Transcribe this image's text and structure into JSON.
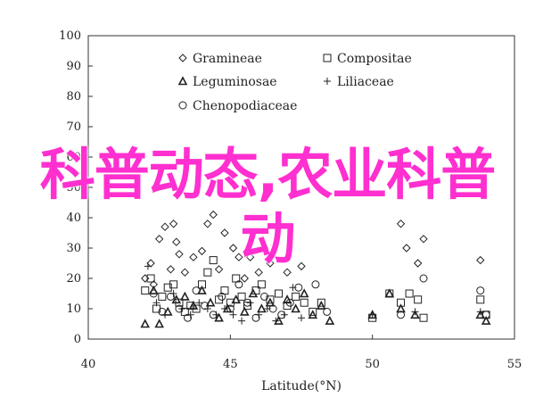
{
  "overlay_text": "科普动态,农业科普动",
  "chart_data": {
    "type": "scatter",
    "title": "",
    "xlabel": "Latitude(°N)",
    "ylabel": "",
    "xlim": [
      40,
      55
    ],
    "ylim": [
      0,
      100
    ],
    "xticks": [
      "40",
      "45",
      "50",
      "55"
    ],
    "yticks": [
      "0",
      "10",
      "20",
      "30",
      "40",
      "50",
      "60",
      "70",
      "80",
      "90",
      "100"
    ],
    "legend_placement": "top-left",
    "series": [
      {
        "name": "Gramineae",
        "marker": "diamond",
        "points": [
          [
            42.0,
            20
          ],
          [
            42.2,
            25
          ],
          [
            42.3,
            18
          ],
          [
            42.5,
            33
          ],
          [
            42.7,
            37
          ],
          [
            42.9,
            23
          ],
          [
            43.0,
            38
          ],
          [
            43.1,
            32
          ],
          [
            43.2,
            28
          ],
          [
            43.4,
            22
          ],
          [
            43.7,
            27
          ],
          [
            44.0,
            29
          ],
          [
            44.2,
            38
          ],
          [
            44.4,
            41
          ],
          [
            44.6,
            23
          ],
          [
            44.8,
            35
          ],
          [
            45.1,
            30
          ],
          [
            45.3,
            27
          ],
          [
            45.5,
            20
          ],
          [
            45.7,
            27
          ],
          [
            46.0,
            22
          ],
          [
            46.2,
            30
          ],
          [
            46.4,
            25
          ],
          [
            47.0,
            22
          ],
          [
            47.5,
            24
          ],
          [
            51.0,
            38
          ],
          [
            51.2,
            30
          ],
          [
            51.6,
            25
          ],
          [
            51.8,
            33
          ],
          [
            53.8,
            26
          ]
        ]
      },
      {
        "name": "Compositae",
        "marker": "square",
        "points": [
          [
            42.0,
            16
          ],
          [
            42.2,
            20
          ],
          [
            42.4,
            10
          ],
          [
            42.6,
            14
          ],
          [
            42.8,
            17
          ],
          [
            43.0,
            18
          ],
          [
            43.2,
            12
          ],
          [
            43.4,
            9
          ],
          [
            43.6,
            11
          ],
          [
            43.8,
            10
          ],
          [
            44.0,
            18
          ],
          [
            44.2,
            22
          ],
          [
            44.4,
            26
          ],
          [
            44.6,
            13
          ],
          [
            44.8,
            16
          ],
          [
            45.0,
            12
          ],
          [
            45.2,
            20
          ],
          [
            45.4,
            14
          ],
          [
            45.6,
            11
          ],
          [
            45.9,
            16
          ],
          [
            46.1,
            18
          ],
          [
            46.4,
            13
          ],
          [
            46.7,
            15
          ],
          [
            47.0,
            11
          ],
          [
            47.3,
            14
          ],
          [
            47.6,
            12
          ],
          [
            47.9,
            9
          ],
          [
            48.2,
            12
          ],
          [
            50.0,
            7
          ],
          [
            50.6,
            15
          ],
          [
            51.0,
            12
          ],
          [
            51.3,
            15
          ],
          [
            51.6,
            13
          ],
          [
            51.8,
            7
          ],
          [
            53.8,
            13
          ],
          [
            54.0,
            8
          ]
        ]
      },
      {
        "name": "Leguminosae",
        "marker": "triangle",
        "points": [
          [
            42.0,
            5
          ],
          [
            42.3,
            16
          ],
          [
            42.5,
            5
          ],
          [
            42.8,
            9
          ],
          [
            43.1,
            13
          ],
          [
            43.4,
            14
          ],
          [
            43.7,
            11
          ],
          [
            44.0,
            16
          ],
          [
            44.3,
            12
          ],
          [
            44.6,
            7
          ],
          [
            44.9,
            10
          ],
          [
            45.2,
            13
          ],
          [
            45.5,
            9
          ],
          [
            45.8,
            15
          ],
          [
            46.1,
            10
          ],
          [
            46.4,
            12
          ],
          [
            46.7,
            6
          ],
          [
            47.0,
            13
          ],
          [
            47.3,
            10
          ],
          [
            47.6,
            15
          ],
          [
            47.9,
            8
          ],
          [
            48.2,
            11
          ],
          [
            48.5,
            6
          ],
          [
            50.0,
            8
          ],
          [
            50.6,
            15
          ],
          [
            51.0,
            10
          ],
          [
            51.5,
            8
          ],
          [
            53.8,
            8
          ],
          [
            54.0,
            6
          ]
        ]
      },
      {
        "name": "Liliaceae",
        "marker": "plus",
        "points": [
          [
            42.1,
            24
          ],
          [
            42.4,
            12
          ],
          [
            42.7,
            8
          ],
          [
            43.0,
            15
          ],
          [
            43.3,
            10
          ],
          [
            43.6,
            8
          ],
          [
            43.9,
            12
          ],
          [
            44.2,
            10
          ],
          [
            44.5,
            8
          ],
          [
            44.8,
            10
          ],
          [
            45.1,
            8
          ],
          [
            45.4,
            6
          ],
          [
            45.7,
            12
          ],
          [
            46.0,
            8
          ],
          [
            46.3,
            10
          ],
          [
            46.6,
            6
          ],
          [
            46.9,
            8
          ],
          [
            47.2,
            17
          ],
          [
            47.5,
            7
          ],
          [
            50.0,
            8
          ],
          [
            51.5,
            9
          ],
          [
            53.8,
            9
          ]
        ]
      },
      {
        "name": "Chenopodiaceae",
        "marker": "circle",
        "points": [
          [
            42.3,
            15
          ],
          [
            42.6,
            9
          ],
          [
            42.9,
            14
          ],
          [
            43.2,
            10
          ],
          [
            43.5,
            7
          ],
          [
            43.8,
            16
          ],
          [
            44.1,
            11
          ],
          [
            44.4,
            8
          ],
          [
            44.7,
            14
          ],
          [
            45.0,
            10
          ],
          [
            45.3,
            18
          ],
          [
            45.6,
            12
          ],
          [
            45.9,
            7
          ],
          [
            46.2,
            14
          ],
          [
            46.5,
            10
          ],
          [
            46.8,
            8
          ],
          [
            47.1,
            12
          ],
          [
            47.4,
            17
          ],
          [
            48.0,
            18
          ],
          [
            48.4,
            9
          ],
          [
            51.0,
            8
          ],
          [
            51.8,
            20
          ],
          [
            53.8,
            16
          ],
          [
            54.0,
            8
          ]
        ]
      }
    ]
  }
}
